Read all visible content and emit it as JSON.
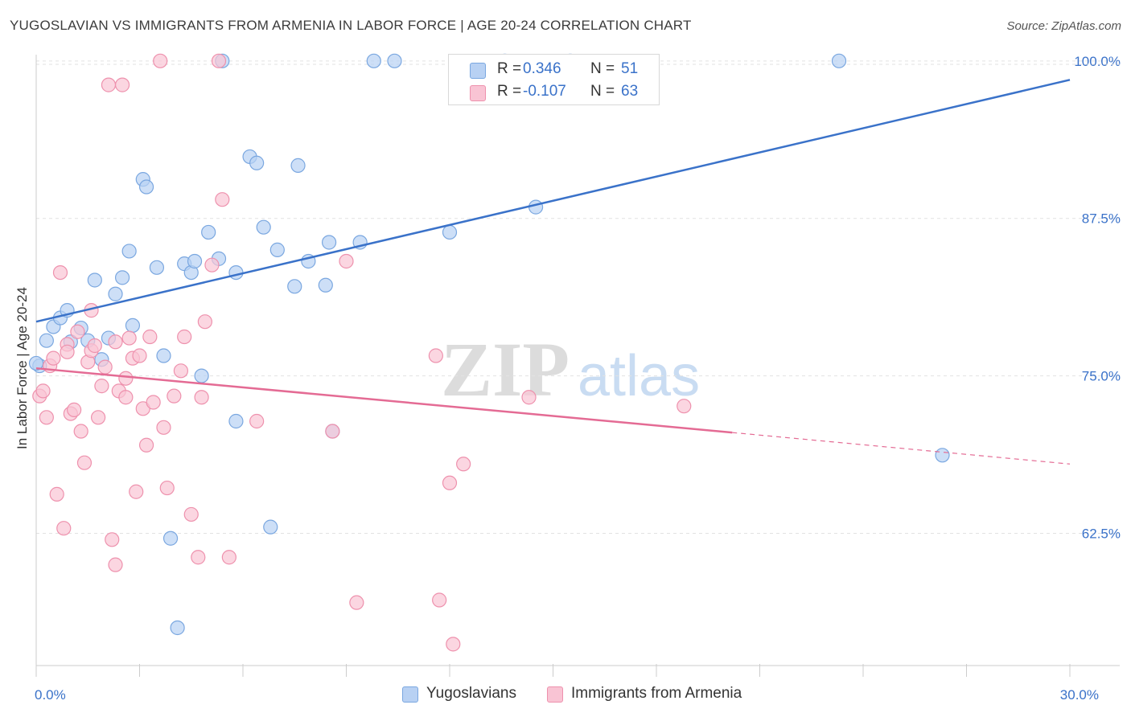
{
  "title": "YUGOSLAVIAN VS IMMIGRANTS FROM ARMENIA IN LABOR FORCE | AGE 20-24 CORRELATION CHART",
  "source": "Source: ZipAtlas.com",
  "watermark": {
    "zip": "ZIP",
    "atlas": "atlas"
  },
  "legend": {
    "r_label": "R =",
    "n_label": "N =",
    "series": [
      {
        "name": "Yugoslavians",
        "r": "0.346",
        "n": "51",
        "fill": "#b8d1f3",
        "stroke": "#7aa7e0"
      },
      {
        "name": "Immigrants from Armenia",
        "r": "-0.107",
        "n": "63",
        "fill": "#f9c4d4",
        "stroke": "#ee91ad"
      }
    ]
  },
  "chart_data": {
    "type": "scatter",
    "title": "YUGOSLAVIAN VS IMMIGRANTS FROM ARMENIA IN LABOR FORCE | AGE 20-24 CORRELATION CHART",
    "ylabel": "In Labor Force | Age 20-24",
    "xlabel": "",
    "xlim": [
      0,
      30
    ],
    "ylim": [
      52.0,
      100.5
    ],
    "x_tick_labels": [
      {
        "value": 0,
        "label": "0.0%"
      },
      {
        "value": 30,
        "label": "30.0%"
      }
    ],
    "y_tick_labels": [
      {
        "value": 62.5,
        "label": "62.5%"
      },
      {
        "value": 75.0,
        "label": "75.0%"
      },
      {
        "value": 87.5,
        "label": "87.5%"
      },
      {
        "value": 100.0,
        "label": "100.0%"
      }
    ],
    "grid": true,
    "series": [
      {
        "name": "Yugoslavians",
        "color": "#3a72c9",
        "fill": "#b8d1f3",
        "trend": {
          "x": [
            0,
            30
          ],
          "y": [
            79.3,
            98.5
          ],
          "dashed_from": null
        },
        "points": [
          [
            0.1,
            75.8
          ],
          [
            0.3,
            77.8
          ],
          [
            0.5,
            78.9
          ],
          [
            0.7,
            79.6
          ],
          [
            0.9,
            80.2
          ],
          [
            1.0,
            77.7
          ],
          [
            1.3,
            78.8
          ],
          [
            1.5,
            77.8
          ],
          [
            1.7,
            82.6
          ],
          [
            1.9,
            76.3
          ],
          [
            2.1,
            78.0
          ],
          [
            2.3,
            81.5
          ],
          [
            2.5,
            82.8
          ],
          [
            2.7,
            84.9
          ],
          [
            2.8,
            79.0
          ],
          [
            3.1,
            90.6
          ],
          [
            3.2,
            90.0
          ],
          [
            3.5,
            83.6
          ],
          [
            3.7,
            76.6
          ],
          [
            3.9,
            62.1
          ],
          [
            4.1,
            55.0
          ],
          [
            4.3,
            83.9
          ],
          [
            4.5,
            83.2
          ],
          [
            4.6,
            84.1
          ],
          [
            4.8,
            75.0
          ],
          [
            5.0,
            86.4
          ],
          [
            5.3,
            84.3
          ],
          [
            5.4,
            100.0
          ],
          [
            5.8,
            71.4
          ],
          [
            5.8,
            83.2
          ],
          [
            6.2,
            92.4
          ],
          [
            6.4,
            91.9
          ],
          [
            6.6,
            86.8
          ],
          [
            6.8,
            63.0
          ],
          [
            7.0,
            85.0
          ],
          [
            7.5,
            82.1
          ],
          [
            7.6,
            91.7
          ],
          [
            7.9,
            84.1
          ],
          [
            8.4,
            82.2
          ],
          [
            8.5,
            85.6
          ],
          [
            8.6,
            70.6
          ],
          [
            9.4,
            85.6
          ],
          [
            9.8,
            100.0
          ],
          [
            10.4,
            100.0
          ],
          [
            12.0,
            86.4
          ],
          [
            13.6,
            100.0
          ],
          [
            14.5,
            88.4
          ],
          [
            15.5,
            100.0
          ],
          [
            23.3,
            100.0
          ],
          [
            26.3,
            68.7
          ],
          [
            0.0,
            76.0
          ]
        ]
      },
      {
        "name": "Immigrants from Armenia",
        "color": "#e46b94",
        "fill": "#f9c4d4",
        "trend": {
          "x": [
            0,
            20.2,
            30
          ],
          "y": [
            75.6,
            70.5,
            68.0
          ],
          "dashed_from": 20.2
        },
        "points": [
          [
            0.1,
            73.4
          ],
          [
            0.2,
            73.8
          ],
          [
            0.3,
            71.7
          ],
          [
            0.4,
            75.8
          ],
          [
            0.5,
            76.4
          ],
          [
            0.6,
            65.6
          ],
          [
            0.7,
            83.2
          ],
          [
            0.8,
            62.9
          ],
          [
            0.9,
            77.5
          ],
          [
            1.0,
            72.0
          ],
          [
            1.1,
            72.3
          ],
          [
            1.2,
            78.5
          ],
          [
            1.3,
            70.6
          ],
          [
            1.4,
            68.1
          ],
          [
            1.5,
            76.1
          ],
          [
            1.6,
            77.0
          ],
          [
            1.7,
            77.4
          ],
          [
            1.8,
            71.7
          ],
          [
            2.0,
            75.7
          ],
          [
            2.1,
            98.1
          ],
          [
            2.2,
            62.0
          ],
          [
            2.3,
            60.0
          ],
          [
            2.4,
            73.8
          ],
          [
            2.5,
            98.1
          ],
          [
            2.6,
            74.8
          ],
          [
            2.7,
            78.0
          ],
          [
            2.8,
            76.4
          ],
          [
            2.9,
            65.8
          ],
          [
            3.0,
            76.6
          ],
          [
            3.1,
            72.4
          ],
          [
            3.3,
            78.1
          ],
          [
            3.4,
            72.9
          ],
          [
            3.6,
            100.0
          ],
          [
            3.8,
            66.1
          ],
          [
            4.0,
            73.4
          ],
          [
            4.3,
            78.1
          ],
          [
            4.5,
            64.0
          ],
          [
            4.7,
            60.6
          ],
          [
            4.8,
            73.3
          ],
          [
            4.9,
            79.3
          ],
          [
            5.1,
            83.8
          ],
          [
            5.4,
            89.0
          ],
          [
            5.6,
            60.6
          ],
          [
            6.4,
            71.4
          ],
          [
            8.6,
            70.6
          ],
          [
            9.0,
            84.1
          ],
          [
            9.3,
            57.0
          ],
          [
            11.6,
            76.6
          ],
          [
            11.7,
            57.2
          ],
          [
            12.0,
            66.5
          ],
          [
            12.1,
            53.7
          ],
          [
            12.4,
            68.0
          ],
          [
            14.3,
            73.3
          ],
          [
            18.8,
            72.6
          ],
          [
            2.6,
            73.3
          ],
          [
            1.9,
            74.2
          ],
          [
            3.2,
            69.5
          ],
          [
            0.9,
            76.9
          ],
          [
            1.6,
            80.2
          ],
          [
            2.3,
            77.7
          ],
          [
            4.2,
            75.4
          ],
          [
            3.7,
            70.9
          ],
          [
            5.3,
            100.0
          ]
        ]
      }
    ]
  }
}
